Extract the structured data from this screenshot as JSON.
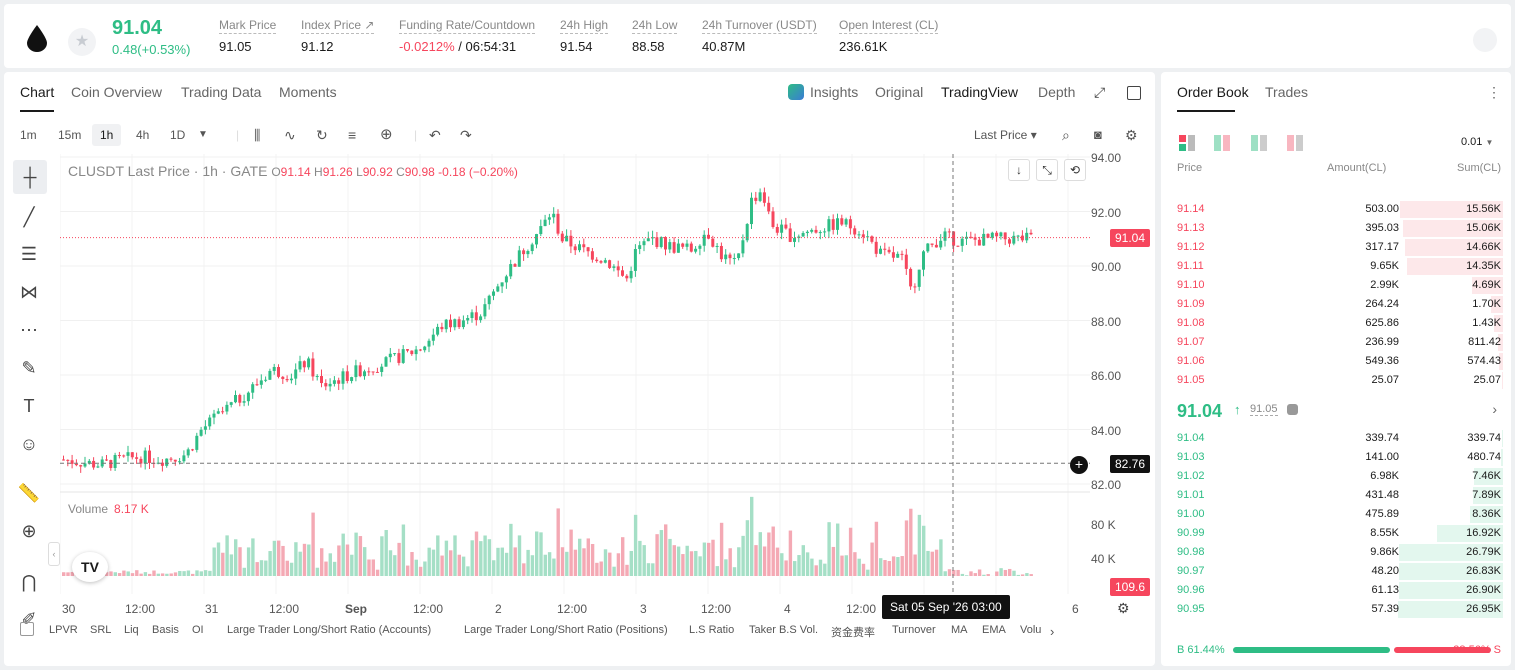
{
  "header": {
    "price": "91.04",
    "change": "0.48(+0.53%)",
    "stats": [
      {
        "label": "Mark Price",
        "value": "91.05"
      },
      {
        "label": "Index Price ↗",
        "value": "91.12"
      },
      {
        "label": "Funding Rate/Countdown",
        "value_neg": "-0.0212%",
        "value": "/ 06:54:31"
      },
      {
        "label": "24h High",
        "value": "91.54"
      },
      {
        "label": "24h Low",
        "value": "88.58"
      },
      {
        "label": "24h Turnover (USDT)",
        "value": "40.87M"
      },
      {
        "label": "Open Interest (CL)",
        "value": "236.61K"
      }
    ]
  },
  "chart_tabs": [
    "Chart",
    "Coin Overview",
    "Trading Data",
    "Moments"
  ],
  "view_tabs": [
    "Insights",
    "Original",
    "TradingView",
    "Depth"
  ],
  "intervals": [
    "1m",
    "15m",
    "1h",
    "4h",
    "1D"
  ],
  "last_price_select": "Last Price",
  "ohlc": {
    "symbol": "CLUSDT Last Price · 1h · GATE",
    "o": "91.14",
    "h": "91.26",
    "l": "90.92",
    "c": "90.98",
    "chg": "-0.18 (−0.20%)"
  },
  "volume": {
    "label": "Volume",
    "value": "8.17 K"
  },
  "y_labels": [
    "94.00",
    "92.00",
    "90.00",
    "88.00",
    "86.00",
    "84.00",
    "82.00"
  ],
  "vol_labels": [
    "80 K",
    "40 K"
  ],
  "price_tag": "91.04",
  "cross_tag": "82.76",
  "vol_tag": "109.6",
  "x_labels": [
    "30",
    "12:00",
    "31",
    "12:00",
    "Sep",
    "12:00",
    "2",
    "12:00",
    "3",
    "12:00",
    "4",
    "12:00",
    "6"
  ],
  "crosshair_date": "Sat 05 Sep '26   03:00",
  "indicators": [
    "LPVR",
    "SRL",
    "Liq",
    "Basis",
    "OI",
    "Large Trader Long/Short Ratio (Accounts)",
    "Large Trader Long/Short Ratio (Positions)",
    "L.S Ratio",
    "Taker B.S Vol.",
    "资金费率",
    "Turnover",
    "MA",
    "EMA",
    "Volu"
  ],
  "orderbook": {
    "tabs": [
      "Order Book",
      "Trades"
    ],
    "precision": "0.01",
    "headers": [
      "Price",
      "Amount(CL)",
      "Sum(CL)"
    ],
    "asks": [
      [
        "91.14",
        "503.00",
        "15.56K"
      ],
      [
        "91.13",
        "395.03",
        "15.06K"
      ],
      [
        "91.12",
        "317.17",
        "14.66K"
      ],
      [
        "91.11",
        "9.65K",
        "14.35K"
      ],
      [
        "91.10",
        "2.99K",
        "4.69K"
      ],
      [
        "91.09",
        "264.24",
        "1.70K"
      ],
      [
        "91.08",
        "625.86",
        "1.43K"
      ],
      [
        "91.07",
        "236.99",
        "811.42"
      ],
      [
        "91.06",
        "549.36",
        "574.43"
      ],
      [
        "91.05",
        "25.07",
        "25.07"
      ]
    ],
    "ask_depth": [
      0.98,
      0.95,
      0.93,
      0.91,
      0.3,
      0.11,
      0.09,
      0.05,
      0.04,
      0.01
    ],
    "mid_price": "91.04",
    "mid_mark": "91.05",
    "bids": [
      [
        "91.04",
        "339.74",
        "339.74"
      ],
      [
        "91.03",
        "141.00",
        "480.74"
      ],
      [
        "91.02",
        "6.98K",
        "7.46K"
      ],
      [
        "91.01",
        "431.48",
        "7.89K"
      ],
      [
        "91.00",
        "475.89",
        "8.36K"
      ],
      [
        "90.99",
        "8.55K",
        "16.92K"
      ],
      [
        "90.98",
        "9.86K",
        "26.79K"
      ],
      [
        "90.97",
        "48.20",
        "26.83K"
      ],
      [
        "90.96",
        "61.13",
        "26.90K"
      ],
      [
        "90.95",
        "57.39",
        "26.95K"
      ]
    ],
    "bid_depth": [
      0.01,
      0.02,
      0.28,
      0.29,
      0.31,
      0.63,
      0.99,
      0.99,
      0.99,
      1.0
    ],
    "buy": "B 61.44%",
    "sell": "38.56% S",
    "buy_ratio": 0.6144
  },
  "colors": {
    "up": "#2ebd85",
    "down": "#f6465d"
  }
}
